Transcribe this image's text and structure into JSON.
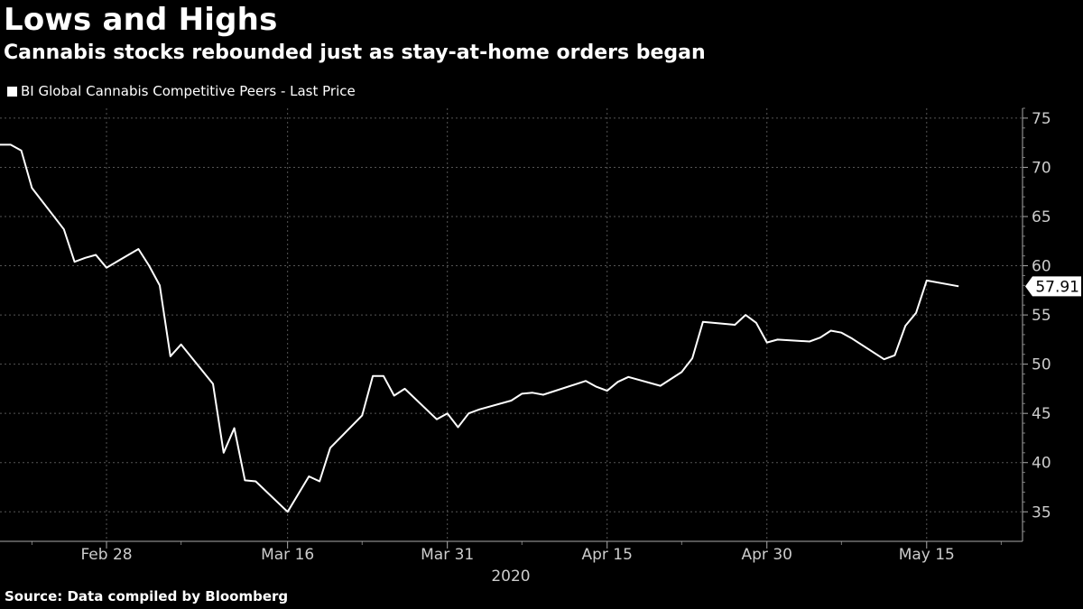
{
  "title": "Lows and Highs",
  "subtitle": "Cannabis stocks rebounded just as stay-at-home orders began",
  "source": "Source: Data compiled by Bloomberg",
  "colors": {
    "background": "#000000",
    "line": "#ffffff",
    "grid": "#555555",
    "text": "#ffffff"
  },
  "chart_data": {
    "type": "line",
    "title": "Lows and Highs",
    "subtitle": "Cannabis stocks rebounded just as stay-at-home orders began",
    "legend": "top-left",
    "grid": true,
    "xlabel": "2020",
    "ylabel": "",
    "ylim": [
      32,
      76
    ],
    "yticks": [
      35,
      40,
      45,
      50,
      55,
      60,
      65,
      70,
      75
    ],
    "xticks": [
      {
        "label": "Feb 28",
        "date": "2020-02-28"
      },
      {
        "label": "Mar 16",
        "date": "2020-03-16"
      },
      {
        "label": "Mar 31",
        "date": "2020-03-31"
      },
      {
        "label": "Apr 15",
        "date": "2020-04-15"
      },
      {
        "label": "Apr 30",
        "date": "2020-04-30"
      },
      {
        "label": "May 15",
        "date": "2020-05-15"
      }
    ],
    "xlim": [
      "2020-02-18",
      "2020-05-24"
    ],
    "last_value_label": "57.91",
    "series": [
      {
        "name": "BI Global Cannabis Competitive Peers - Last Price",
        "points": [
          [
            "2020-02-18",
            72.3
          ],
          [
            "2020-02-19",
            72.3
          ],
          [
            "2020-02-20",
            71.7
          ],
          [
            "2020-02-21",
            67.9
          ],
          [
            "2020-02-24",
            63.7
          ],
          [
            "2020-02-25",
            60.4
          ],
          [
            "2020-02-26",
            60.8
          ],
          [
            "2020-02-27",
            61.1
          ],
          [
            "2020-02-28",
            59.8
          ],
          [
            "2020-03-02",
            61.7
          ],
          [
            "2020-03-03",
            60.0
          ],
          [
            "2020-03-04",
            58.0
          ],
          [
            "2020-03-05",
            50.8
          ],
          [
            "2020-03-06",
            52.0
          ],
          [
            "2020-03-09",
            48.0
          ],
          [
            "2020-03-10",
            41.0
          ],
          [
            "2020-03-11",
            43.5
          ],
          [
            "2020-03-12",
            38.2
          ],
          [
            "2020-03-13",
            38.1
          ],
          [
            "2020-03-16",
            35.0
          ],
          [
            "2020-03-17",
            36.8
          ],
          [
            "2020-03-18",
            38.6
          ],
          [
            "2020-03-19",
            38.1
          ],
          [
            "2020-03-20",
            41.5
          ],
          [
            "2020-03-23",
            44.8
          ],
          [
            "2020-03-24",
            48.8
          ],
          [
            "2020-03-25",
            48.8
          ],
          [
            "2020-03-26",
            46.8
          ],
          [
            "2020-03-27",
            47.5
          ],
          [
            "2020-03-30",
            44.4
          ],
          [
            "2020-03-31",
            45.0
          ],
          [
            "2020-04-01",
            43.6
          ],
          [
            "2020-04-02",
            45.0
          ],
          [
            "2020-04-03",
            45.4
          ],
          [
            "2020-04-06",
            46.3
          ],
          [
            "2020-04-07",
            47.0
          ],
          [
            "2020-04-08",
            47.1
          ],
          [
            "2020-04-09",
            46.9
          ],
          [
            "2020-04-13",
            48.3
          ],
          [
            "2020-04-14",
            47.7
          ],
          [
            "2020-04-15",
            47.3
          ],
          [
            "2020-04-16",
            48.2
          ],
          [
            "2020-04-17",
            48.7
          ],
          [
            "2020-04-20",
            47.8
          ],
          [
            "2020-04-21",
            48.5
          ],
          [
            "2020-04-22",
            49.2
          ],
          [
            "2020-04-23",
            50.6
          ],
          [
            "2020-04-24",
            54.3
          ],
          [
            "2020-04-27",
            54.0
          ],
          [
            "2020-04-28",
            55.0
          ],
          [
            "2020-04-29",
            54.2
          ],
          [
            "2020-04-30",
            52.2
          ],
          [
            "2020-05-01",
            52.5
          ],
          [
            "2020-05-04",
            52.3
          ],
          [
            "2020-05-05",
            52.7
          ],
          [
            "2020-05-06",
            53.4
          ],
          [
            "2020-05-07",
            53.2
          ],
          [
            "2020-05-08",
            52.6
          ],
          [
            "2020-05-11",
            50.5
          ],
          [
            "2020-05-12",
            50.9
          ],
          [
            "2020-05-13",
            53.9
          ],
          [
            "2020-05-14",
            55.2
          ],
          [
            "2020-05-15",
            58.5
          ],
          [
            "2020-05-18",
            57.91
          ]
        ]
      }
    ]
  }
}
